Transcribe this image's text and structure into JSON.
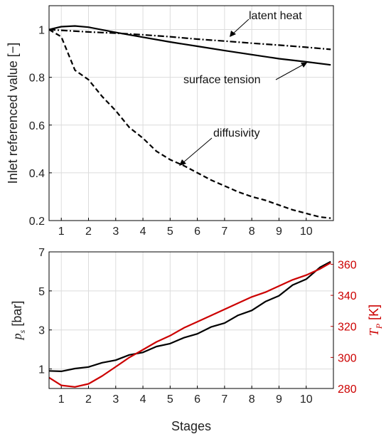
{
  "chart_data": [
    {
      "type": "line",
      "title": "",
      "xlabel": "",
      "ylabel": "Inlet referenced value [−]",
      "xlim": [
        0.55,
        11.0
      ],
      "ylim": [
        0.2,
        1.1
      ],
      "x_ticks": [
        "1",
        "2",
        "3",
        "4",
        "5",
        "6",
        "7",
        "8",
        "9",
        "10"
      ],
      "y_ticks": [
        "0.2",
        "0.4",
        "0.6",
        "0.8",
        "1"
      ],
      "grid": true,
      "series": [
        {
          "name": "latent heat",
          "style": "dashdot",
          "color": "#000000",
          "x": [
            0.55,
            1.0,
            2.0,
            3.0,
            4.0,
            5.0,
            6.0,
            7.0,
            8.0,
            9.0,
            10.0,
            10.9
          ],
          "y": [
            1.0,
            0.997,
            0.99,
            0.985,
            0.978,
            0.97,
            0.96,
            0.952,
            0.943,
            0.935,
            0.926,
            0.917
          ]
        },
        {
          "name": "surface tension",
          "style": "solid",
          "color": "#000000",
          "x": [
            0.55,
            1.0,
            1.5,
            2.0,
            3.0,
            4.0,
            5.0,
            6.0,
            7.0,
            8.0,
            9.0,
            10.0,
            10.9
          ],
          "y": [
            1.0,
            1.012,
            1.015,
            1.01,
            0.988,
            0.968,
            0.948,
            0.93,
            0.912,
            0.895,
            0.878,
            0.865,
            0.852
          ]
        },
        {
          "name": "diffusivity",
          "style": "dashed",
          "color": "#000000",
          "x": [
            0.55,
            1.0,
            1.5,
            2.0,
            2.5,
            3.0,
            3.5,
            4.0,
            4.5,
            5.0,
            5.5,
            6.0,
            6.5,
            7.0,
            7.5,
            8.0,
            8.5,
            9.0,
            9.5,
            10.0,
            10.5,
            10.9
          ],
          "y": [
            1.0,
            0.97,
            0.83,
            0.79,
            0.72,
            0.66,
            0.59,
            0.545,
            0.49,
            0.455,
            0.43,
            0.4,
            0.37,
            0.345,
            0.32,
            0.3,
            0.285,
            0.265,
            0.245,
            0.23,
            0.215,
            0.21
          ]
        }
      ],
      "annotations": [
        "latent heat",
        "surface tension",
        "diffusivity"
      ]
    },
    {
      "type": "line",
      "title": "",
      "xlabel": "Stages",
      "ylabel": "p_s [bar]",
      "y2label": "T_P [K]",
      "xlim": [
        0.55,
        11.0
      ],
      "ylim": [
        0,
        7
      ],
      "y2lim": [
        280,
        368
      ],
      "x_ticks": [
        "1",
        "2",
        "3",
        "4",
        "5",
        "6",
        "7",
        "8",
        "9",
        "10"
      ],
      "y_ticks": [
        "1",
        "3",
        "5",
        "7"
      ],
      "y2_ticks": [
        "280",
        "300",
        "320",
        "340",
        "360"
      ],
      "grid": true,
      "series": [
        {
          "name": "p_s",
          "axis": "left",
          "color": "#000000",
          "x": [
            0.55,
            1.0,
            1.5,
            2.0,
            2.5,
            3.0,
            3.5,
            4.0,
            4.5,
            5.0,
            5.5,
            6.0,
            6.5,
            7.0,
            7.5,
            8.0,
            8.5,
            9.0,
            9.5,
            10.0,
            10.5,
            10.9
          ],
          "y": [
            0.9,
            0.88,
            1.02,
            1.1,
            1.32,
            1.45,
            1.72,
            1.85,
            2.15,
            2.3,
            2.6,
            2.8,
            3.15,
            3.35,
            3.75,
            4.0,
            4.45,
            4.75,
            5.3,
            5.6,
            6.2,
            6.5
          ]
        },
        {
          "name": "T_P",
          "axis": "right",
          "color": "#cc0000",
          "x": [
            0.55,
            1.0,
            1.5,
            2.0,
            2.5,
            3.0,
            3.5,
            4.0,
            4.5,
            5.0,
            5.5,
            6.0,
            6.5,
            7.0,
            7.5,
            8.0,
            8.5,
            9.0,
            9.5,
            10.0,
            10.5,
            10.9
          ],
          "y": [
            287,
            282,
            281,
            283,
            288,
            294,
            300,
            305,
            310,
            314,
            319,
            323,
            327,
            331,
            335,
            339,
            342,
            346,
            350,
            353,
            357,
            361
          ]
        }
      ]
    }
  ],
  "labels": {
    "top_ylabel": "Inlet referenced value [−]",
    "latent_heat": "latent heat",
    "surface_tension": "surface tension",
    "diffusivity": "diffusivity",
    "xlabel": "Stages",
    "ps_main": "p",
    "ps_sub": "s",
    "ps_unit": " [bar]",
    "tp_main": "T",
    "tp_sub": "P",
    "tp_unit": " [K]"
  },
  "colors": {
    "temperature": "#cc0000",
    "axis": "#000000",
    "grid": "#dcdcdc"
  }
}
